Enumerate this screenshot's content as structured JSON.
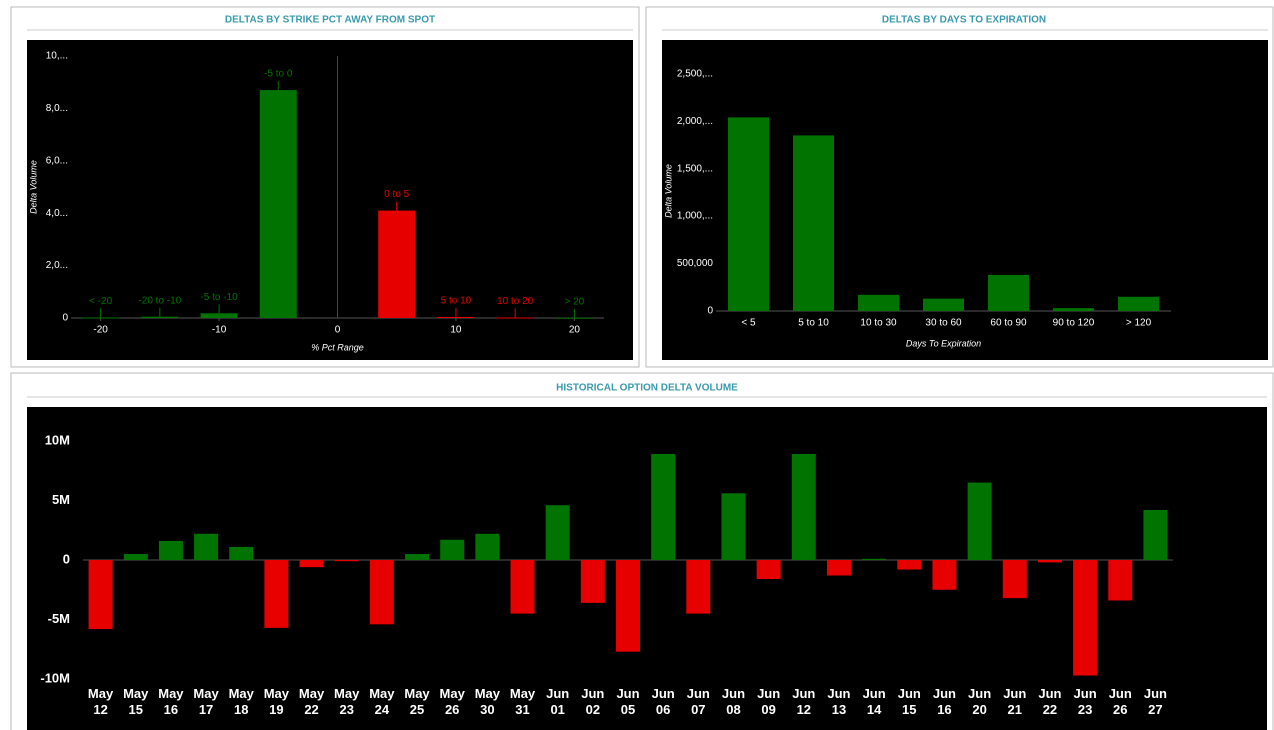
{
  "chart_data": [
    {
      "type": "bar",
      "title": "DELTAS BY STRIKE PCT AWAY FROM SPOT",
      "x_label": "% Pct Range",
      "y_label": "Delta Volume",
      "categories": [
        "< -20",
        "-20 to -10",
        "-5 to -10",
        "-5 to 0",
        "0 to 5",
        "5 to 10",
        "10 to 20",
        "> 20"
      ],
      "x": [
        -20,
        -15,
        -10,
        -5,
        5,
        10,
        15,
        20
      ],
      "values": [
        20,
        50,
        180,
        8700,
        4100,
        40,
        20,
        10
      ],
      "colors": [
        "#007300",
        "#007300",
        "#007300",
        "#007300",
        "#e60000",
        "#e60000",
        "#e60000",
        "#007300"
      ],
      "xlim": [
        -22.5,
        22.5
      ],
      "xticks": [
        -20,
        -10,
        0,
        10,
        20
      ],
      "ylim": [
        0,
        10000
      ],
      "yticks": [
        0,
        {
          "value": 2000,
          "label": "2,0..."
        },
        {
          "value": 4000,
          "label": "4,0..."
        },
        {
          "value": 6000,
          "label": "6,0..."
        },
        {
          "value": 8000,
          "label": "8,0..."
        },
        {
          "value": 10000,
          "label": "10,..."
        }
      ]
    },
    {
      "type": "bar",
      "title": "DELTAS BY DAYS TO EXPIRATION",
      "x_label": "Days To Expiration",
      "y_label": "Delta Volume",
      "categories": [
        "< 5",
        "5 to 10",
        "10 to 30",
        "30 to 60",
        "60 to 90",
        "90 to 120",
        "> 120"
      ],
      "values": [
        2040000,
        1850000,
        170000,
        130000,
        380000,
        30000,
        150000
      ],
      "color": "#007300",
      "ylim": [
        0,
        2750000
      ],
      "yticks": [
        0,
        {
          "value": 500000,
          "label": "500,000"
        },
        {
          "value": 1000000,
          "label": "1,000,..."
        },
        {
          "value": 1500000,
          "label": "1,500,..."
        },
        {
          "value": 2000000,
          "label": "2,000,..."
        },
        {
          "value": 2500000,
          "label": "2,500,..."
        }
      ]
    },
    {
      "type": "signed_bar",
      "title": "HISTORICAL OPTION DELTA VOLUME",
      "categories": [
        "May 12",
        "May 15",
        "May 16",
        "May 17",
        "May 18",
        "May 19",
        "May 22",
        "May 23",
        "May 24",
        "May 25",
        "May 26",
        "May 30",
        "May 31",
        "Jun 01",
        "Jun 02",
        "Jun 05",
        "Jun 06",
        "Jun 07",
        "Jun 08",
        "Jun 09",
        "Jun 12",
        "Jun 13",
        "Jun 14",
        "Jun 15",
        "Jun 16",
        "Jun 20",
        "Jun 21",
        "Jun 22",
        "Jun 23",
        "Jun 26",
        "Jun 27"
      ],
      "values": [
        -5800000,
        500000,
        1600000,
        2200000,
        1100000,
        -5700000,
        -600000,
        -100000,
        -5400000,
        500000,
        1700000,
        2200000,
        -4500000,
        4600000,
        -3600000,
        -7700000,
        8900000,
        -4500000,
        5600000,
        -1600000,
        8900000,
        -1300000,
        100000,
        -800000,
        -2500000,
        6500000,
        -3200000,
        -200000,
        -9700000,
        -3400000,
        4200000
      ],
      "positive_color": "#007300",
      "negative_color": "#e60000",
      "ylim": [
        -11000000,
        11000000
      ],
      "yticks": [
        {
          "value": -10000000,
          "label": "-10M"
        },
        {
          "value": -5000000,
          "label": "-5M"
        },
        0,
        {
          "value": 5000000,
          "label": "5M"
        },
        {
          "value": 10000000,
          "label": "10M"
        }
      ]
    }
  ]
}
